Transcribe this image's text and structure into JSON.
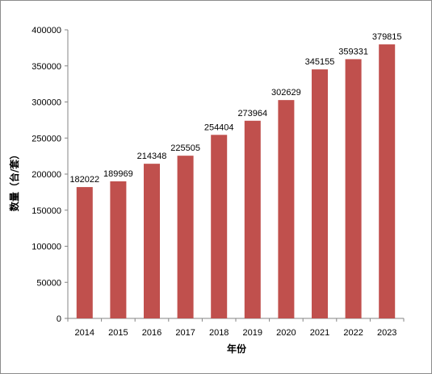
{
  "chart_data": {
    "type": "bar",
    "categories": [
      "2014",
      "2015",
      "2016",
      "2017",
      "2018",
      "2019",
      "2020",
      "2021",
      "2022",
      "2023"
    ],
    "values": [
      182022,
      189969,
      214348,
      225505,
      254404,
      273964,
      302629,
      345155,
      359331,
      379815
    ],
    "data_labels": [
      "182022",
      "189969",
      "214348",
      "225505",
      "254404",
      "273964",
      "302629",
      "345155",
      "359331",
      "379815"
    ],
    "y_ticks": [
      "0",
      "50000",
      "100000",
      "150000",
      "200000",
      "250000",
      "300000",
      "350000",
      "400000"
    ],
    "xlabel": "年份",
    "ylabel": "数量（台/套）",
    "ylim": [
      0,
      400000
    ],
    "grid": false,
    "legend": false,
    "bar_color": "#c0504d"
  }
}
